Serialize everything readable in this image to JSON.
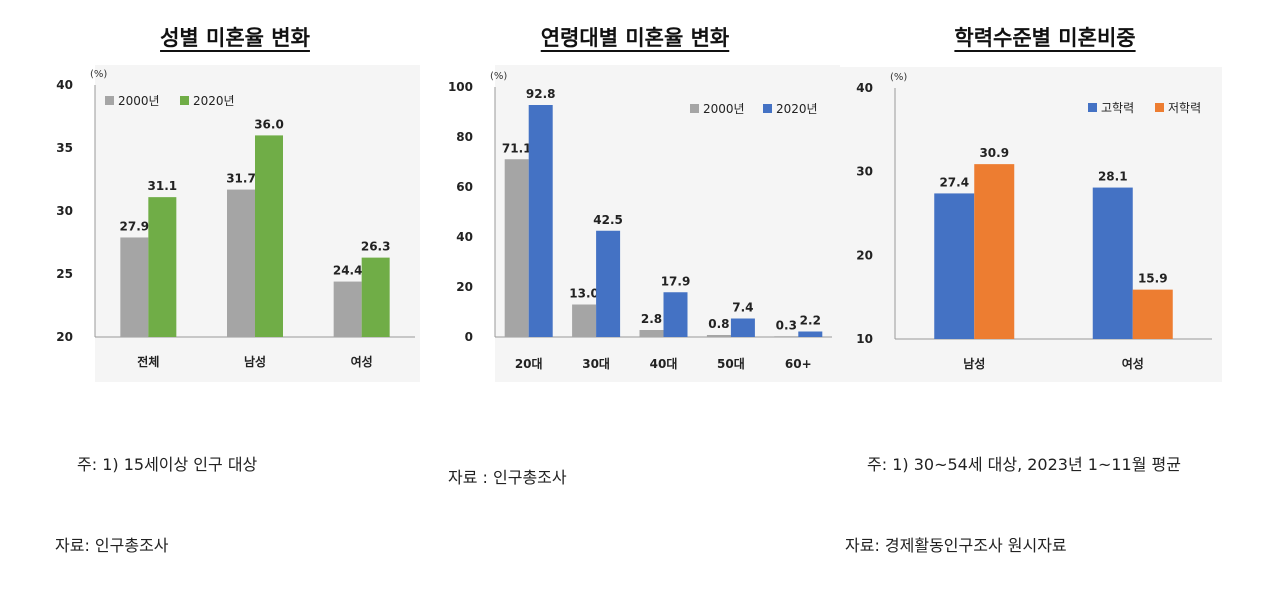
{
  "chart_data": [
    {
      "type": "bar",
      "title": "성별 미혼율 변화",
      "unit": "(%)",
      "categories": [
        "전체",
        "남성",
        "여성"
      ],
      "series": [
        {
          "name": "2000년",
          "values": [
            27.9,
            31.7,
            24.4
          ],
          "color": "#a5a5a5"
        },
        {
          "name": "2020년",
          "values": [
            31.1,
            36.0,
            26.3
          ],
          "color": "#70ad47"
        }
      ],
      "ylim": [
        20,
        40
      ],
      "yticks": [
        20,
        25,
        30,
        35,
        40
      ],
      "legend": "top-left",
      "notes": [
        "주: 1) 15세이상 인구 대상",
        "자료: 인구총조사"
      ]
    },
    {
      "type": "bar",
      "title": "연령대별 미혼율 변화",
      "unit": "(%)",
      "categories": [
        "20대",
        "30대",
        "40대",
        "50대",
        "60+"
      ],
      "series": [
        {
          "name": "2000년",
          "values": [
            71.1,
            13.0,
            2.8,
            0.8,
            0.3
          ],
          "color": "#a5a5a5"
        },
        {
          "name": "2020년",
          "values": [
            92.8,
            42.5,
            17.9,
            7.4,
            2.2
          ],
          "color": "#4472c4"
        }
      ],
      "ylim": [
        0,
        100
      ],
      "yticks": [
        0,
        20,
        40,
        60,
        80,
        100
      ],
      "legend": "top-right",
      "notes": [
        "자료 : 인구총조사"
      ]
    },
    {
      "type": "bar",
      "title": "학력수준별 미혼비중",
      "unit": "(%)",
      "categories": [
        "남성",
        "여성"
      ],
      "series": [
        {
          "name": "고학력",
          "values": [
            27.4,
            28.1
          ],
          "color": "#4472c4"
        },
        {
          "name": "저학력",
          "values": [
            30.9,
            15.9
          ],
          "color": "#ed7d31"
        }
      ],
      "ylim": [
        10,
        40
      ],
      "yticks": [
        10,
        20,
        30,
        40
      ],
      "legend": "top-right",
      "notes": [
        "주: 1) 30~54세 대상, 2023년 1~11월 평균",
        "자료: 경제활동인구조사 원시자료"
      ]
    }
  ]
}
